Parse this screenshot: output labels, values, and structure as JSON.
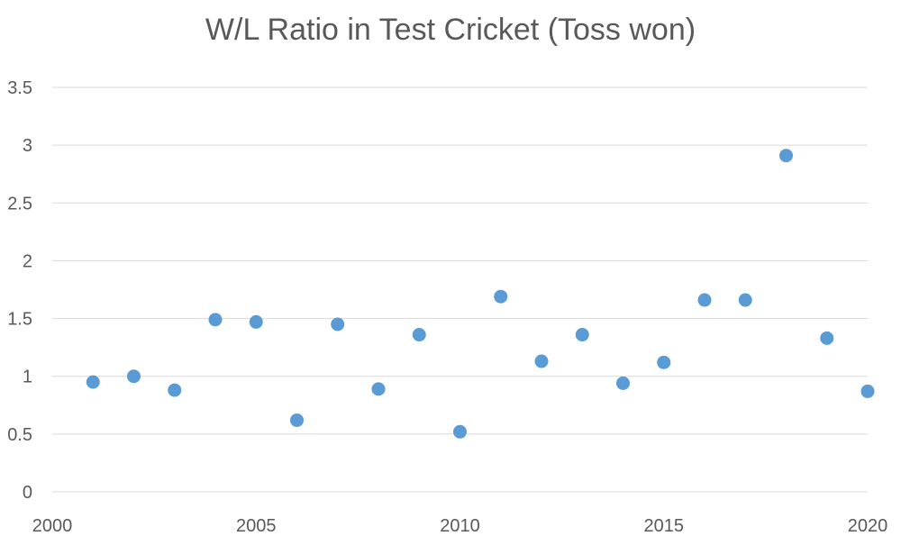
{
  "chart_data": {
    "type": "scatter",
    "title": "W/L Ratio in Test Cricket (Toss won)",
    "xlabel": "",
    "ylabel": "",
    "xlim": [
      2000,
      2020
    ],
    "ylim": [
      0,
      3.5
    ],
    "x_ticks": [
      2000,
      2005,
      2010,
      2015,
      2020
    ],
    "y_ticks": [
      0,
      0.5,
      1,
      1.5,
      2,
      2.5,
      3,
      3.5
    ],
    "y_tick_labels": [
      "0",
      "0.5",
      "1",
      "1.5",
      "2",
      "2.5",
      "3",
      "3.5"
    ],
    "grid": "horizontal",
    "legend": "none",
    "marker_color": "#5b9bd5",
    "series": [
      {
        "x": [
          2001,
          2002,
          2003,
          2004,
          2005,
          2006,
          2007,
          2008,
          2009,
          2010,
          2011,
          2012,
          2013,
          2014,
          2015,
          2016,
          2017,
          2018,
          2019,
          2020
        ],
        "y": [
          0.95,
          1.0,
          0.88,
          1.49,
          1.47,
          0.62,
          1.45,
          0.89,
          1.36,
          0.52,
          1.69,
          1.13,
          1.36,
          0.94,
          1.12,
          1.66,
          1.66,
          2.91,
          1.33,
          0.87
        ]
      }
    ]
  }
}
